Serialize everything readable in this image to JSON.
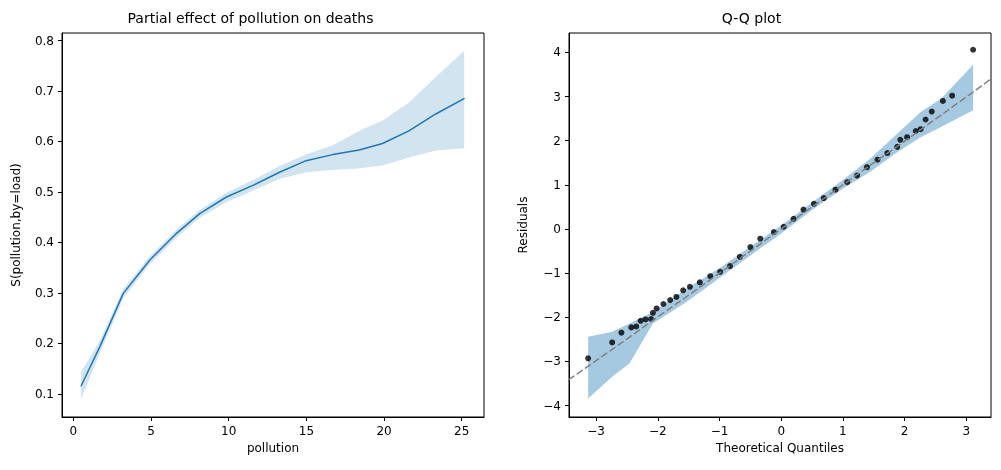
{
  "chart_data": [
    {
      "type": "line",
      "title": "Partial effect of pollution on deaths",
      "xlabel": "pollution",
      "ylabel": "S(pollution,by=load)",
      "xlim": [
        -0.735,
        26.435
      ],
      "xticks": [
        0,
        5,
        10,
        15,
        20,
        25
      ],
      "ylim": [
        0.054,
        0.815
      ],
      "yticks": [
        0.1,
        0.2,
        0.3,
        0.4,
        0.5,
        0.6,
        0.7,
        0.8
      ],
      "grid": false,
      "series": [
        {
          "color": "#1f77b4",
          "x": [
            0.5,
            1.71,
            3.21,
            4.92,
            6.64,
            8.13,
            9.85,
            11.56,
            13.27,
            14.98,
            16.7,
            18.4,
            19.9,
            21.6,
            23.3,
            25.15
          ],
          "values": [
            0.116,
            0.194,
            0.299,
            0.365,
            0.418,
            0.457,
            0.49,
            0.513,
            0.539,
            0.562,
            0.574,
            0.583,
            0.596,
            0.621,
            0.654,
            0.685
          ],
          "lower": [
            0.09,
            0.182,
            0.29,
            0.357,
            0.41,
            0.449,
            0.48,
            0.503,
            0.526,
            0.539,
            0.544,
            0.547,
            0.553,
            0.569,
            0.582,
            0.587
          ],
          "upper": [
            0.143,
            0.205,
            0.307,
            0.372,
            0.425,
            0.464,
            0.498,
            0.523,
            0.551,
            0.574,
            0.592,
            0.621,
            0.641,
            0.677,
            0.727,
            0.779
          ]
        }
      ]
    },
    {
      "type": "scatter",
      "title": "Q-Q plot",
      "xlabel": "Theoretical Quantiles",
      "ylabel": "Residuals",
      "xlim": [
        -3.44,
        3.4
      ],
      "xticks": [
        {
          "value": -3,
          "label": "−3"
        },
        {
          "value": -2,
          "label": "−2"
        },
        {
          "value": -1,
          "label": "−1"
        },
        0,
        1,
        2,
        3
      ],
      "ylim": [
        -4.26,
        4.44
      ],
      "yticks": [
        {
          "value": -4,
          "label": "−4"
        },
        {
          "value": -3,
          "label": "−3"
        },
        {
          "value": -2,
          "label": "−2"
        },
        {
          "value": -1,
          "label": "−1"
        },
        0,
        1,
        2,
        3,
        4
      ],
      "grid": false,
      "series": [
        {
          "type": "line",
          "color": "#808080",
          "line_style": "dashed",
          "marker": "none",
          "x": [
            -3.44,
            -3.13,
            -2.74,
            -2.46,
            -2.08,
            -1.53,
            -0.99,
            -0.45,
            0,
            0.47,
            1.01,
            1.45,
            1.88,
            2.26,
            2.59,
            3.11,
            3.4
          ],
          "values": [
            -3.41,
            -3.11,
            -2.73,
            -2.45,
            -2.07,
            -1.53,
            -0.99,
            -0.45,
            0,
            0.47,
            1.01,
            1.45,
            1.87,
            2.25,
            2.58,
            3.1,
            3.4
          ],
          "lower": [
            null,
            -3.84,
            -3.35,
            -3.05,
            -2.14,
            -1.65,
            -1.1,
            -0.55,
            -0.1,
            0.4,
            0.92,
            1.3,
            1.74,
            2.08,
            2.31,
            2.69,
            null
          ],
          "upper": [
            null,
            -2.44,
            -2.33,
            -2.14,
            -1.88,
            -1.35,
            -0.88,
            -0.35,
            0.08,
            0.57,
            1.12,
            1.6,
            2.16,
            2.65,
            2.95,
            3.72,
            null
          ]
        },
        {
          "color": "#000000",
          "marker": "circle",
          "x": [
            -3.13,
            -2.74,
            -2.59,
            -2.43,
            -2.35,
            -2.28,
            -2.2,
            -2.11,
            -2.08,
            -2.02,
            -1.91,
            -1.8,
            -1.7,
            -1.59,
            -1.48,
            -1.32,
            -1.15,
            -0.99,
            -0.83,
            -0.67,
            -0.5,
            -0.34,
            -0.12,
            0.04,
            0.2,
            0.36,
            0.53,
            0.69,
            0.88,
            1.07,
            1.23,
            1.39,
            1.56,
            1.72,
            1.88,
            1.93,
            2.04,
            2.18,
            2.26,
            2.34,
            2.44,
            2.62,
            2.77,
            3.11
          ],
          "values": [
            -2.93,
            -2.57,
            -2.35,
            -2.23,
            -2.21,
            -2.08,
            -2.05,
            -2.04,
            -1.9,
            -1.8,
            -1.7,
            -1.61,
            -1.54,
            -1.39,
            -1.31,
            -1.21,
            -1.07,
            -0.97,
            -0.84,
            -0.63,
            -0.41,
            -0.22,
            -0.07,
            0.05,
            0.23,
            0.44,
            0.57,
            0.7,
            0.89,
            1.06,
            1.21,
            1.4,
            1.57,
            1.72,
            1.86,
            2.02,
            2.08,
            2.22,
            2.26,
            2.48,
            2.66,
            2.9,
            3.02,
            4.06
          ]
        }
      ]
    }
  ]
}
